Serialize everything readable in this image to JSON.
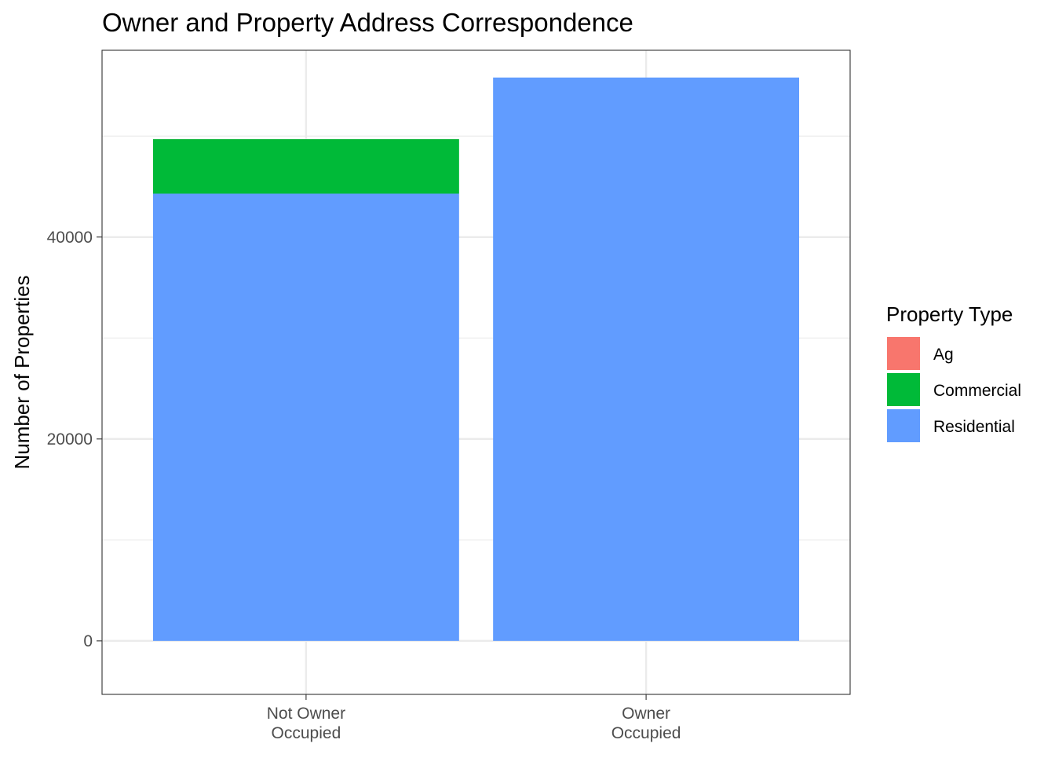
{
  "chart_data": {
    "type": "bar",
    "stacked": true,
    "title": "Owner and Property Address Correspondence",
    "xlabel": "",
    "ylabel": "Number of Properties",
    "categories": [
      "Not Owner\nOccupied",
      "Owner\nOccupied"
    ],
    "series": [
      {
        "name": "Ag",
        "color": "#F8766D",
        "values": [
          5,
          0
        ]
      },
      {
        "name": "Commercial",
        "color": "#00BA38",
        "values": [
          5400,
          0
        ]
      },
      {
        "name": "Residential",
        "color": "#619CFF",
        "values": [
          44300,
          55800
        ]
      }
    ],
    "ylim": [
      -5300,
      58500
    ],
    "yticks": [
      0,
      20000,
      40000
    ],
    "y_minor_ticks": [
      10000,
      30000,
      50000
    ],
    "grid": true,
    "legend": {
      "title": "Property Type",
      "placement": "right"
    },
    "colors": {
      "panel_border": "#333333",
      "grid": "#EBEBEB",
      "tick_label": "#4D4D4D",
      "text": "#000000"
    }
  }
}
